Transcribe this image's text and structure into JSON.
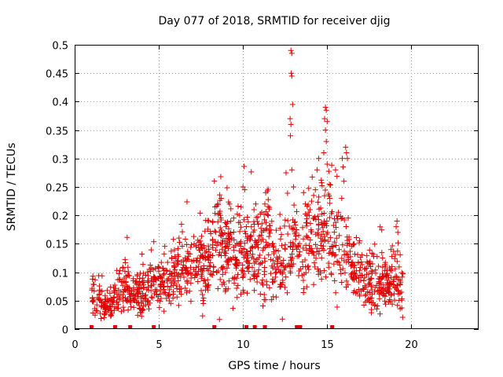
{
  "chart_data": {
    "type": "scatter",
    "title": "Day 077 of 2018, SRMTID for receiver djig",
    "xlabel": "GPS time / hours",
    "ylabel": "SRMTID / TECUs",
    "xlim": [
      0,
      24
    ],
    "ylim": [
      0,
      0.5
    ],
    "x_ticks": [
      0,
      5,
      10,
      15,
      20
    ],
    "y_ticks": [
      0,
      0.05,
      0.1,
      0.15,
      0.2,
      0.25,
      0.3,
      0.35,
      0.4,
      0.45,
      0.5
    ],
    "grid": true,
    "marker": "+",
    "color": "#e00000",
    "baseline_markers_x": [
      1.0,
      2.4,
      3.3,
      4.7,
      8.3,
      10.2,
      10.7,
      11.3,
      13.2,
      13.4,
      15.3
    ],
    "profile_points": [
      [
        1.0,
        0.06
      ],
      [
        1.5,
        0.05
      ],
      [
        2.0,
        0.035
      ],
      [
        2.5,
        0.06
      ],
      [
        3.0,
        0.08
      ],
      [
        3.5,
        0.06
      ],
      [
        4.0,
        0.065
      ],
      [
        4.5,
        0.075
      ],
      [
        5.0,
        0.08
      ],
      [
        5.5,
        0.09
      ],
      [
        6.0,
        0.1
      ],
      [
        6.5,
        0.105
      ],
      [
        7.0,
        0.11
      ],
      [
        7.5,
        0.115
      ],
      [
        8.0,
        0.13
      ],
      [
        8.5,
        0.15
      ],
      [
        9.0,
        0.14
      ],
      [
        9.5,
        0.12
      ],
      [
        10.0,
        0.13
      ],
      [
        10.5,
        0.14
      ],
      [
        11.0,
        0.13
      ],
      [
        11.5,
        0.15
      ],
      [
        12.0,
        0.11
      ],
      [
        12.5,
        0.12
      ],
      [
        13.0,
        0.16
      ],
      [
        13.5,
        0.12
      ],
      [
        14.0,
        0.15
      ],
      [
        14.5,
        0.17
      ],
      [
        15.0,
        0.17
      ],
      [
        15.5,
        0.14
      ],
      [
        16.0,
        0.13
      ],
      [
        16.5,
        0.1
      ],
      [
        17.0,
        0.09
      ],
      [
        17.5,
        0.085
      ],
      [
        18.0,
        0.08
      ],
      [
        18.5,
        0.07
      ],
      [
        19.0,
        0.1
      ],
      [
        19.5,
        0.07
      ]
    ],
    "peaks": [
      [
        12.85,
        0.49
      ],
      [
        12.9,
        0.485
      ],
      [
        12.87,
        0.45
      ],
      [
        12.9,
        0.445
      ],
      [
        12.95,
        0.395
      ],
      [
        12.8,
        0.37
      ],
      [
        12.85,
        0.36
      ],
      [
        12.82,
        0.34
      ],
      [
        12.9,
        0.28
      ],
      [
        13.0,
        0.25
      ],
      [
        14.9,
        0.39
      ],
      [
        14.95,
        0.385
      ],
      [
        14.85,
        0.37
      ],
      [
        15.0,
        0.365
      ],
      [
        14.9,
        0.35
      ],
      [
        14.95,
        0.33
      ],
      [
        14.8,
        0.31
      ],
      [
        15.0,
        0.29
      ],
      [
        14.5,
        0.3
      ],
      [
        14.4,
        0.28
      ],
      [
        14.3,
        0.245
      ],
      [
        14.2,
        0.235
      ],
      [
        16.1,
        0.32
      ],
      [
        16.15,
        0.31
      ],
      [
        16.2,
        0.3
      ],
      [
        15.9,
        0.3
      ],
      [
        15.95,
        0.285
      ],
      [
        16.0,
        0.26
      ],
      [
        10.0,
        0.25
      ],
      [
        10.1,
        0.245
      ],
      [
        11.35,
        0.24
      ],
      [
        11.3,
        0.22
      ],
      [
        8.7,
        0.23
      ],
      [
        8.5,
        0.22
      ],
      [
        9.2,
        0.22
      ],
      [
        13.6,
        0.24
      ],
      [
        13.7,
        0.22
      ],
      [
        19.15,
        0.19
      ],
      [
        19.1,
        0.18
      ],
      [
        19.2,
        0.17
      ],
      [
        6.2,
        0.16
      ],
      [
        7.1,
        0.15
      ],
      [
        11.5,
        0.2
      ],
      [
        9.8,
        0.2
      ],
      [
        15.5,
        0.28
      ]
    ],
    "random_seed": 77
  }
}
